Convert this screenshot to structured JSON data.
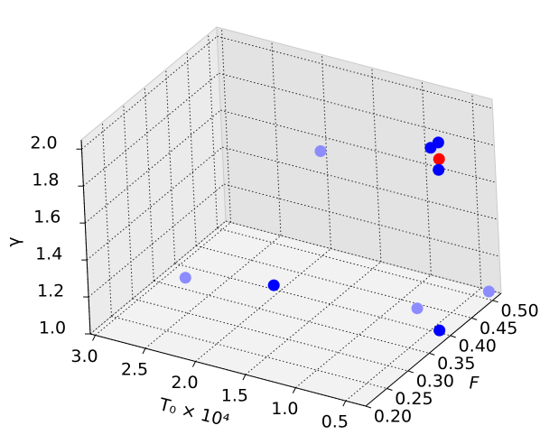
{
  "chart_data": {
    "type": "scatter3d",
    "xlabel": "T₀ × 10⁴",
    "ylabel": "F",
    "zlabel": "γ",
    "x": [
      0.42,
      0.42,
      0.5,
      0.43,
      1.97,
      2.84,
      1.75,
      0.8,
      0.43,
      0.41
    ],
    "y": [
      0.42,
      0.42,
      0.42,
      0.42,
      0.5,
      0.375,
      0.33,
      0.44,
      0.405,
      0.517
    ],
    "z": [
      1.9,
      1.99,
      1.95,
      1.84,
      1.57,
      1.0,
      1.2,
      1.0,
      1.0,
      1.0
    ],
    "colors": [
      "#ff0000",
      "#0000ff",
      "#0000ff",
      "#0000ff",
      "#8c8cff",
      "#8c8cff",
      "#0000ff",
      "#8c8cff",
      "#0000ff",
      "#8c8cff"
    ],
    "xlim": [
      3.05,
      0.3
    ],
    "ylim": [
      0.2,
      0.52
    ],
    "zlim": [
      1.0,
      2.05
    ],
    "xticks": [
      {
        "value": 3,
        "label": "3.0"
      },
      2.5,
      {
        "value": 2,
        "label": "2.0"
      },
      1.5,
      {
        "value": 1,
        "label": "1.0"
      },
      0.5
    ],
    "yticks": [
      {
        "value": 0.2,
        "label": "0.20"
      },
      0.25,
      {
        "value": 0.3,
        "label": "0.30"
      },
      0.35,
      {
        "value": 0.4,
        "label": "0.40"
      },
      0.45,
      {
        "value": 0.5,
        "label": "0.50"
      }
    ],
    "zticks": [
      {
        "value": 1,
        "label": "1.0"
      },
      1.2,
      1.4,
      1.6,
      1.8,
      {
        "value": 2,
        "label": "2.0"
      }
    ],
    "grid": true
  }
}
